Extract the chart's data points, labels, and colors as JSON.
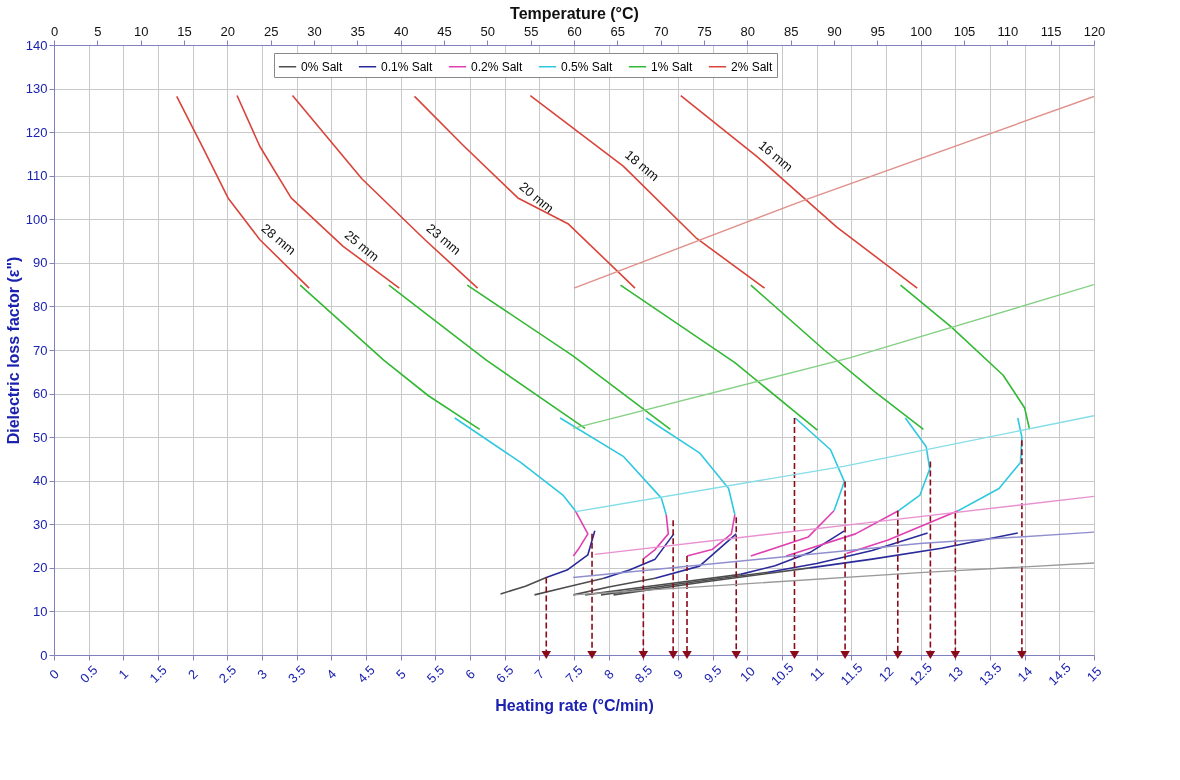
{
  "chart_data": {
    "type": "line",
    "xlabel": "Heating rate (°C/min)",
    "ylabel": "Dielectric loss factor (ε\")",
    "x2label": "Temperature (°C)",
    "xlim": [
      0,
      15
    ],
    "xticks": [
      0,
      0.5,
      1,
      1.5,
      2,
      2.5,
      3,
      3.5,
      4,
      4.5,
      5,
      5.5,
      6,
      6.5,
      7,
      7.5,
      8,
      8.5,
      9,
      9.5,
      10,
      10.5,
      11,
      11.5,
      12,
      12.5,
      13,
      13.5,
      14,
      14.5,
      15
    ],
    "x2lim": [
      0,
      120
    ],
    "x2ticks": [
      0,
      5,
      10,
      15,
      20,
      25,
      30,
      35,
      40,
      45,
      50,
      55,
      60,
      65,
      70,
      75,
      80,
      85,
      90,
      95,
      100,
      105,
      110,
      115,
      120
    ],
    "ylim": [
      0,
      140
    ],
    "yticks": [
      0,
      10,
      20,
      30,
      40,
      50,
      60,
      70,
      80,
      90,
      100,
      110,
      120,
      130,
      140
    ],
    "grid": true,
    "legend": "top",
    "series": [
      {
        "name": "0% Salt",
        "color": "#4d4d4d",
        "x": [
          7.1,
          6.8,
          6.44
        ],
        "values": [
          17.8,
          15.8,
          14
        ]
      },
      {
        "color": "#4d4d4d",
        "x": [
          7.93,
          7.4,
          6.93
        ],
        "values": [
          17.6,
          15.6,
          13.8
        ]
      },
      {
        "color": "#4d4d4d",
        "x": [
          8.67,
          8.0,
          7.49
        ],
        "values": [
          17.6,
          15.6,
          13.8
        ]
      },
      {
        "color": "#4d4d4d",
        "x": [
          9.9,
          8.7,
          7.66
        ],
        "values": [
          18.5,
          16,
          13.8
        ]
      },
      {
        "color": "#4d4d4d",
        "x": [
          10.3,
          9.0,
          7.89
        ],
        "values": [
          19,
          16.3,
          13.8
        ]
      },
      {
        "color": "#4d4d4d",
        "x": [
          10.9,
          9.4,
          8.07
        ],
        "values": [
          20,
          16.8,
          13.8
        ]
      },
      {
        "name": "0.1% Salt",
        "color": "#2a2a9a",
        "x": [
          7.8,
          7.7,
          7.4,
          7.1
        ],
        "values": [
          28.5,
          23,
          19.5,
          17.8
        ]
      },
      {
        "color": "#2a2a9a",
        "x": [
          8.94,
          8.67,
          8.3,
          7.93
        ],
        "values": [
          27.8,
          22,
          19.5,
          17.6
        ]
      },
      {
        "color": "#2a2a9a",
        "x": [
          9.84,
          9.31,
          8.67
        ],
        "values": [
          27.8,
          20.4,
          17.6
        ]
      },
      {
        "color": "#2a2a9a",
        "x": [
          11.4,
          10.9,
          10.4,
          9.9
        ],
        "values": [
          28.5,
          23.5,
          20.5,
          18.5
        ]
      },
      {
        "color": "#2a2a9a",
        "x": [
          12.6,
          11.8,
          11.0,
          10.3
        ],
        "values": [
          28,
          24,
          21,
          19
        ]
      },
      {
        "color": "#2a2a9a",
        "x": [
          13.9,
          12.8,
          11.8,
          10.9
        ],
        "values": [
          28,
          24.5,
          22,
          20
        ]
      },
      {
        "name": "0.2% Salt",
        "color": "#e040b0",
        "x": [
          7.52,
          7.7,
          7.56,
          7.49
        ],
        "values": [
          33.1,
          27.8,
          24.2,
          22.7
        ]
      },
      {
        "color": "#e040b0",
        "x": [
          8.83,
          8.86,
          8.67,
          8.51
        ],
        "values": [
          32.2,
          27.8,
          24.2,
          22.2
        ]
      },
      {
        "color": "#e040b0",
        "x": [
          9.82,
          9.77,
          9.49,
          9.13
        ],
        "values": [
          32.2,
          27.8,
          24.2,
          22.7
        ]
      },
      {
        "color": "#e040b0",
        "x": [
          11.25,
          10.88,
          10.05
        ],
        "values": [
          33.1,
          27.1,
          22.7
        ]
      },
      {
        "color": "#e040b0",
        "x": [
          12.18,
          11.56,
          10.56
        ],
        "values": [
          33.1,
          27.8,
          22.7
        ]
      },
      {
        "color": "#e040b0",
        "x": [
          13.04,
          12.03,
          11.43
        ],
        "values": [
          33.1,
          26.4,
          23.3
        ]
      },
      {
        "name": "0.5% Salt",
        "color": "#2ec8e0",
        "x": [
          5.78,
          6.73,
          7.34,
          7.52
        ],
        "values": [
          54.4,
          44.2,
          36.7,
          33.1
        ]
      },
      {
        "color": "#2ec8e0",
        "x": [
          7.3,
          8.21,
          8.76,
          8.83
        ],
        "values": [
          54.4,
          45.6,
          36,
          32.2
        ]
      },
      {
        "color": "#2ec8e0",
        "x": [
          8.54,
          9.31,
          9.73,
          9.82
        ],
        "values": [
          54.4,
          46.4,
          38.2,
          32.2
        ]
      },
      {
        "color": "#2ec8e0",
        "x": [
          10.69,
          11.2,
          11.4,
          11.25
        ],
        "values": [
          54.4,
          47.1,
          39.8,
          33.1
        ]
      },
      {
        "color": "#2ec8e0",
        "x": [
          12.28,
          12.58,
          12.63,
          12.49,
          12.18
        ],
        "values": [
          54.4,
          47.8,
          42.7,
          36.7,
          33.1
        ]
      },
      {
        "color": "#2ec8e0",
        "x": [
          13.9,
          13.96,
          13.94,
          13.63,
          13.04
        ],
        "values": [
          54.4,
          50,
          44.2,
          38.2,
          33.1
        ]
      },
      {
        "name": "1% Salt",
        "color": "#33b833",
        "x": [
          3.55,
          4.76,
          5.4,
          6.14
        ],
        "values": [
          84.9,
          67.6,
          59.5,
          51.8
        ]
      },
      {
        "color": "#33b833",
        "x": [
          4.83,
          6.24,
          7.66
        ],
        "values": [
          84.9,
          67.6,
          52
        ]
      },
      {
        "color": "#33b833",
        "x": [
          5.96,
          7.48,
          8.89
        ],
        "values": [
          84.9,
          68.7,
          51.8
        ]
      },
      {
        "color": "#33b833",
        "x": [
          8.17,
          9.82,
          11.01
        ],
        "values": [
          84.9,
          67.1,
          51.6
        ]
      },
      {
        "color": "#33b833",
        "x": [
          10.05,
          11.11,
          11.84,
          12.54
        ],
        "values": [
          84.9,
          70,
          60.4,
          51.8
        ]
      },
      {
        "color": "#33b833",
        "x": [
          12.21,
          12.94,
          13.69,
          14.0,
          14.07
        ],
        "values": [
          84.9,
          75.3,
          64.2,
          56.7,
          51.8
        ]
      },
      {
        "name": "2% Salt",
        "color": "#d9443a",
        "x": [
          1.77,
          2.14,
          2.51,
          2.97,
          3.68
        ],
        "values": [
          128.2,
          116.7,
          104.9,
          95.3,
          84.2
        ]
      },
      {
        "color": "#d9443a",
        "x": [
          2.64,
          2.97,
          3.42,
          4.17,
          4.98
        ],
        "values": [
          128.4,
          116.7,
          104.9,
          93.8,
          84.2
        ]
      },
      {
        "color": "#d9443a",
        "x": [
          3.44,
          4.44,
          5.35,
          6.11
        ],
        "values": [
          128.4,
          109.3,
          95.3,
          84.2
        ]
      },
      {
        "color": "#d9443a",
        "x": [
          5.2,
          5.9,
          6.69,
          7.42,
          8.38
        ],
        "values": [
          128.2,
          117,
          104.9,
          98.9,
          84.2
        ]
      },
      {
        "color": "#d9443a",
        "x": [
          6.87,
          8.21,
          9.27,
          10.25
        ],
        "values": [
          128.4,
          112.2,
          95.6,
          84.2
        ]
      },
      {
        "color": "#d9443a",
        "x": [
          9.04,
          10.14,
          11.29,
          12.45
        ],
        "values": [
          128.4,
          114.4,
          98.2,
          84.2
        ]
      },
      {
        "color": "#9a9a9a",
        "axis": "x2",
        "x": [
          59.9,
          99.9,
          120
        ],
        "values": [
          13.8,
          18.9,
          21.1
        ]
      },
      {
        "color": "#8f8fcf",
        "axis": "x2",
        "x": [
          59.9,
          99.9,
          120
        ],
        "values": [
          17.8,
          25.6,
          28.2
        ]
      },
      {
        "color": "#e890d0",
        "axis": "x2",
        "x": [
          62.4,
          96.2,
          120
        ],
        "values": [
          23.1,
          30.9,
          36.4
        ]
      },
      {
        "color": "#85dde8",
        "axis": "x2",
        "x": [
          60.2,
          91.1,
          120
        ],
        "values": [
          32.9,
          43.3,
          54.9
        ]
      },
      {
        "color": "#85d085",
        "axis": "x2",
        "x": [
          59.9,
          91.8,
          120
        ],
        "values": [
          52,
          68.2,
          85
        ]
      },
      {
        "color": "#e0908a",
        "axis": "x2",
        "x": [
          60,
          86.6,
          120
        ],
        "values": [
          84.2,
          104.4,
          128.2
        ]
      },
      {
        "color": "#8b0a1a",
        "line_style": "dashed",
        "x": [
          7.1,
          7.1
        ],
        "values": [
          17.8,
          0
        ]
      },
      {
        "color": "#8b0a1a",
        "line_style": "dashed",
        "x": [
          7.76,
          7.76
        ],
        "values": [
          27.8,
          0
        ]
      },
      {
        "color": "#8b0a1a",
        "line_style": "dashed",
        "x": [
          8.5,
          8.5
        ],
        "values": [
          22.2,
          0
        ]
      },
      {
        "color": "#8b0a1a",
        "line_style": "dashed",
        "x": [
          8.93,
          8.93
        ],
        "values": [
          30.9,
          0
        ]
      },
      {
        "color": "#8b0a1a",
        "line_style": "dashed",
        "x": [
          9.13,
          9.13
        ],
        "values": [
          22.7,
          0
        ]
      },
      {
        "color": "#8b0a1a",
        "line_style": "dashed",
        "x": [
          9.84,
          9.84
        ],
        "values": [
          31.6,
          0
        ]
      },
      {
        "color": "#8b0a1a",
        "line_style": "dashed",
        "x": [
          10.68,
          10.68
        ],
        "values": [
          54.4,
          0
        ]
      },
      {
        "color": "#8b0a1a",
        "line_style": "dashed",
        "x": [
          11.41,
          11.41
        ],
        "values": [
          39.8,
          0
        ]
      },
      {
        "color": "#8b0a1a",
        "line_style": "dashed",
        "x": [
          12.17,
          12.17
        ],
        "values": [
          33.1,
          0
        ]
      },
      {
        "color": "#8b0a1a",
        "line_style": "dashed",
        "x": [
          12.64,
          12.64
        ],
        "values": [
          44.4,
          0
        ]
      },
      {
        "color": "#8b0a1a",
        "line_style": "dashed",
        "x": [
          13.0,
          13.0
        ],
        "values": [
          32.7,
          0
        ]
      },
      {
        "color": "#8b0a1a",
        "line_style": "dashed",
        "x": [
          13.96,
          13.96
        ],
        "values": [
          49.3,
          0
        ]
      }
    ],
    "annotations": [
      {
        "text": "28 mm",
        "x": 2.97,
        "y": 95.3
      },
      {
        "text": "25 mm",
        "x": 4.17,
        "y": 93.8
      },
      {
        "text": "23 mm",
        "x": 5.35,
        "y": 95.3
      },
      {
        "text": "20 mm",
        "x": 6.69,
        "y": 104.9
      },
      {
        "text": "18 mm",
        "x": 8.21,
        "y": 112.2
      },
      {
        "text": "16 mm",
        "x": 10.14,
        "y": 114.4
      }
    ]
  }
}
